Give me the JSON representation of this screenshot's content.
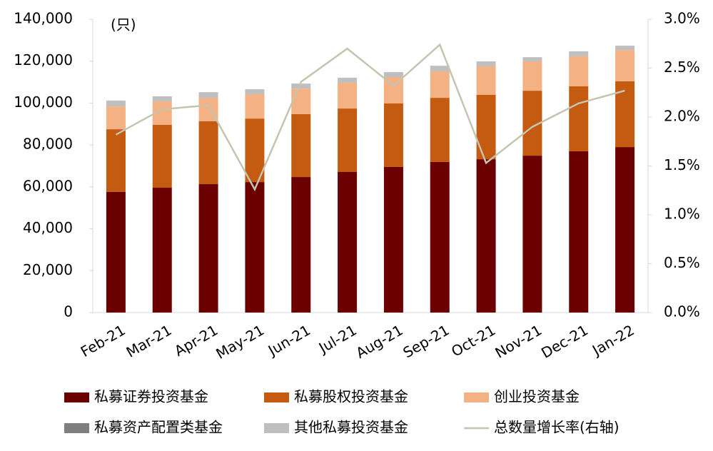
{
  "chart_data": {
    "type": "bar",
    "unit_label": "(只)",
    "categories": [
      "Feb-21",
      "Mar-21",
      "Apr-21",
      "May-21",
      "Jun-21",
      "Jul-21",
      "Aug-21",
      "Sep-21",
      "Oct-21",
      "Nov-21",
      "Dec-21",
      "Jan-22"
    ],
    "stacked": true,
    "series": [
      {
        "name": "私募证券投资基金",
        "color": "#6b0000",
        "values": [
          57600,
          59600,
          61300,
          62300,
          64700,
          67100,
          69500,
          71900,
          73200,
          74900,
          77000,
          79000
        ]
      },
      {
        "name": "私募股权投资基金",
        "color": "#c55a11",
        "values": [
          29900,
          30000,
          30000,
          30300,
          30000,
          30300,
          30300,
          30600,
          30700,
          31000,
          31000,
          31400
        ]
      },
      {
        "name": "创业投资基金",
        "color": "#f4b183",
        "values": [
          10900,
          11200,
          11200,
          11600,
          12200,
          12300,
          12600,
          12600,
          13600,
          14000,
          14300,
          14900
        ]
      },
      {
        "name": "私募资产配置类基金",
        "color": "#7f7f7f",
        "values": [
          10,
          10,
          10,
          10,
          10,
          10,
          10,
          10,
          10,
          10,
          10,
          10
        ]
      },
      {
        "name": "其他私募投资基金",
        "color": "#bfbfbf",
        "values": [
          2800,
          2400,
          2700,
          2400,
          2400,
          2400,
          2400,
          2700,
          2400,
          2000,
          2400,
          2100
        ]
      },
      {
        "name": "总数量增长率(右轴)",
        "type": "line",
        "axis": "y2",
        "color": "#c4c4b0",
        "values": [
          1.82,
          2.08,
          2.12,
          1.26,
          2.36,
          2.7,
          2.32,
          2.74,
          1.53,
          1.9,
          2.14,
          2.27
        ]
      }
    ],
    "ylim": [
      0,
      140000
    ],
    "yticks": [
      0,
      {
        "value": 20000,
        "label": "20,000"
      },
      {
        "value": 40000,
        "label": "40,000"
      },
      {
        "value": 60000,
        "label": "60,000"
      },
      {
        "value": 80000,
        "label": "80,000"
      },
      {
        "value": 100000,
        "label": "100,000"
      },
      {
        "value": 120000,
        "label": "120,000"
      },
      {
        "value": 140000,
        "label": "140,000"
      }
    ],
    "y2lim": [
      0,
      3.0
    ],
    "y2ticks": [
      {
        "value": 0,
        "label": "0.0%"
      },
      {
        "value": 0.5,
        "label": "0.5%"
      },
      {
        "value": 1.0,
        "label": "1.0%"
      },
      {
        "value": 1.5,
        "label": "1.5%"
      },
      {
        "value": 2.0,
        "label": "2.0%"
      },
      {
        "value": 2.5,
        "label": "2.5%"
      },
      {
        "value": 3.0,
        "label": "3.0%"
      }
    ],
    "grid": false
  }
}
